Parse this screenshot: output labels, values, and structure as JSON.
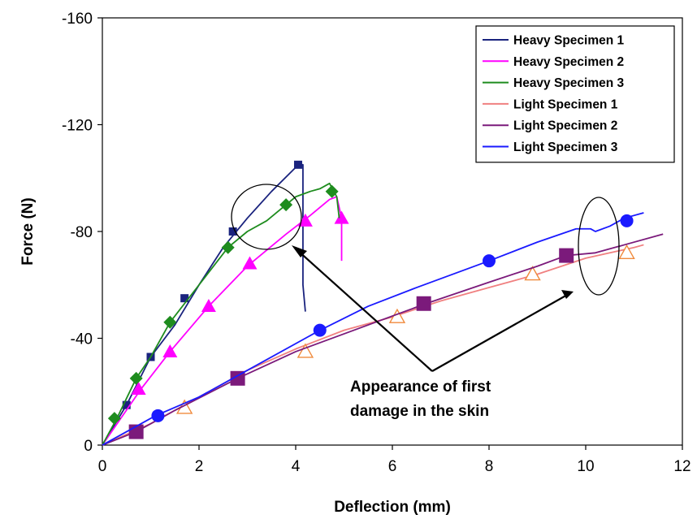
{
  "chart_data": {
    "type": "line",
    "xlabel": "Deflection (mm)",
    "ylabel": "Force (N)",
    "xlim": [
      0,
      12
    ],
    "ylim": [
      0,
      -160
    ],
    "xticks": [
      "0",
      "2",
      "4",
      "6",
      "8",
      "10",
      "12"
    ],
    "yticks": [
      "0",
      "-40",
      "-80",
      "-120",
      "-160"
    ],
    "grid": false,
    "legend_position": "top-right",
    "series": [
      {
        "name": "Heavy Specimen 1",
        "color": "#1a237e",
        "marker": "square-small",
        "x": [
          0,
          0.5,
          1.0,
          1.5,
          2.0,
          2.5,
          3.0,
          3.5,
          4.0,
          4.1,
          4.15,
          4.15,
          4.2
        ],
        "y": [
          0,
          -15,
          -33,
          -45,
          -60,
          -74,
          -85,
          -95,
          -104,
          -105,
          -105,
          -60,
          -50
        ],
        "markers": [
          [
            0.5,
            -15
          ],
          [
            1.0,
            -33
          ],
          [
            1.7,
            -55
          ],
          [
            2.7,
            -80
          ],
          [
            4.05,
            -105
          ]
        ]
      },
      {
        "name": "Heavy Specimen 2",
        "color": "#ff00ff",
        "marker": "triangle",
        "x": [
          0,
          0.8,
          1.4,
          2.2,
          3.0,
          3.8,
          4.3,
          4.7,
          4.85,
          4.95,
          4.95
        ],
        "y": [
          0,
          -21,
          -35,
          -52,
          -67,
          -79,
          -86,
          -92,
          -93,
          -85,
          -69
        ],
        "markers": [
          [
            0.75,
            -21
          ],
          [
            1.4,
            -35
          ],
          [
            2.2,
            -52
          ],
          [
            3.05,
            -68
          ],
          [
            4.2,
            -84
          ],
          [
            4.95,
            -85
          ]
        ]
      },
      {
        "name": "Heavy Specimen 3",
        "color": "#1e8c1e",
        "marker": "diamond",
        "x": [
          0,
          0.3,
          0.7,
          1.0,
          1.4,
          2.0,
          2.6,
          3.0,
          3.4,
          3.6,
          3.8,
          4.0,
          4.3,
          4.5,
          4.7,
          4.85,
          4.9
        ],
        "y": [
          0,
          -10,
          -25,
          -33,
          -46,
          -60,
          -74,
          -80,
          -84,
          -87,
          -90,
          -93,
          -95,
          -96,
          -98,
          -93,
          -85
        ],
        "markers": [
          [
            0.25,
            -10
          ],
          [
            0.7,
            -25
          ],
          [
            1.4,
            -46
          ],
          [
            2.6,
            -74
          ],
          [
            3.8,
            -90
          ],
          [
            4.75,
            -95
          ]
        ]
      },
      {
        "name": "Light Specimen 1",
        "color": "#f08080",
        "marker": "triangle-open",
        "x": [
          0,
          1.0,
          2.0,
          3.0,
          4.0,
          5.0,
          6.0,
          7.0,
          8.0,
          9.0,
          10.0,
          10.5,
          11.0,
          11.2
        ],
        "y": [
          0,
          -8,
          -18,
          -28,
          -36,
          -43,
          -48,
          -54,
          -59,
          -64,
          -70,
          -72,
          -74,
          -75
        ],
        "markers": [
          [
            1.7,
            -14
          ],
          [
            4.2,
            -35
          ],
          [
            6.1,
            -48
          ],
          [
            8.9,
            -64
          ],
          [
            10.85,
            -72
          ]
        ]
      },
      {
        "name": "Light Specimen 2",
        "color": "#7b1a7b",
        "marker": "square-large",
        "x": [
          0,
          0.7,
          1.5,
          2.8,
          4.0,
          5.5,
          6.7,
          8.0,
          9.0,
          9.6,
          10.2,
          10.8,
          11.6
        ],
        "y": [
          0,
          -5,
          -13,
          -25,
          -35,
          -45,
          -53,
          -61,
          -67,
          -71,
          -72,
          -75,
          -79
        ],
        "markers": [
          [
            0.7,
            -5
          ],
          [
            2.8,
            -25
          ],
          [
            6.65,
            -53
          ],
          [
            9.6,
            -71
          ]
        ]
      },
      {
        "name": "Light Specimen 3",
        "color": "#1a1aff",
        "marker": "circle",
        "x": [
          0,
          1.1,
          2.0,
          3.0,
          4.5,
          5.5,
          6.5,
          8.0,
          9.0,
          9.8,
          10.1,
          10.2,
          10.5,
          10.8,
          11.2
        ],
        "y": [
          0,
          -11,
          -18,
          -28,
          -43,
          -52,
          -59,
          -69,
          -76,
          -81,
          -81,
          -80,
          -82,
          -85,
          -87
        ],
        "markers": [
          [
            1.15,
            -11
          ],
          [
            4.5,
            -43
          ],
          [
            8.0,
            -69
          ],
          [
            10.85,
            -84
          ]
        ]
      }
    ],
    "annotation": {
      "lines": [
        "Appearance of  first",
        "damage in the skin"
      ]
    }
  }
}
